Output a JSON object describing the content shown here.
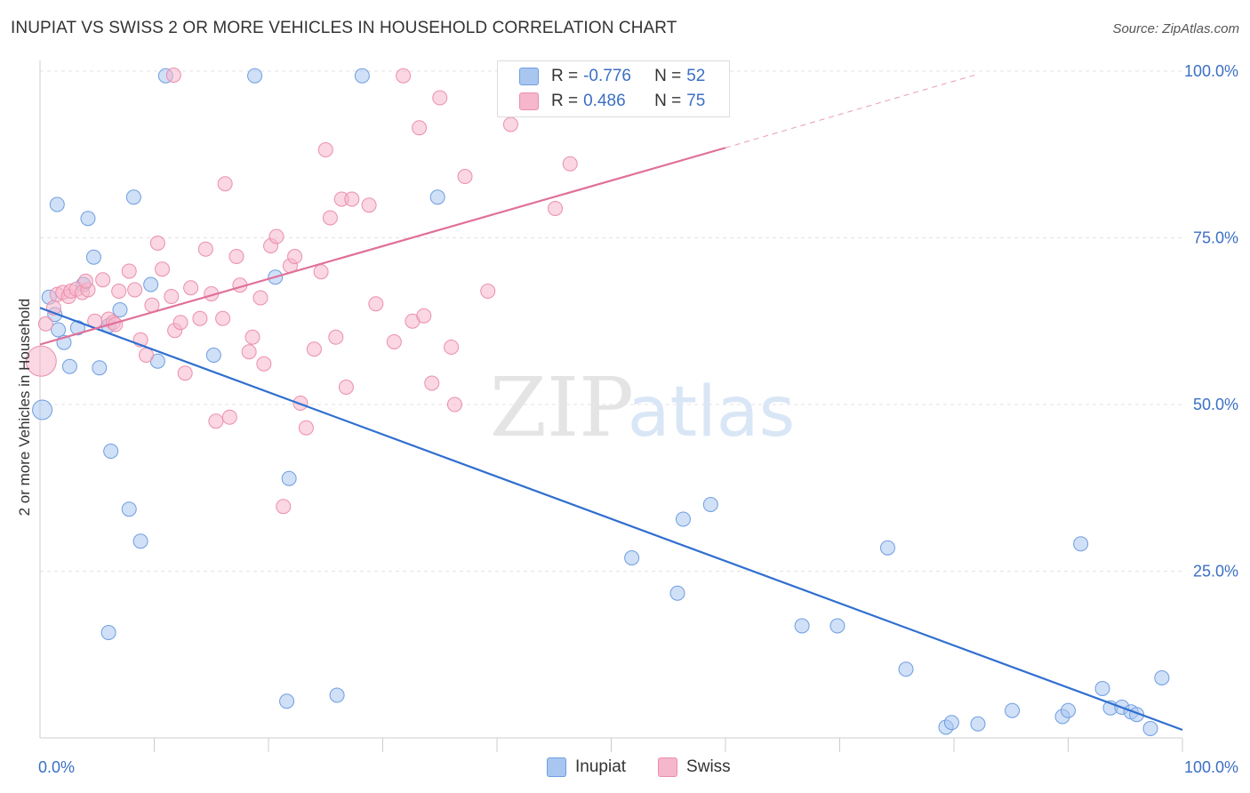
{
  "header": {
    "title": "INUPIAT VS SWISS 2 OR MORE VEHICLES IN HOUSEHOLD CORRELATION CHART",
    "source": "Source: ZipAtlas.com"
  },
  "watermark": {
    "zip": "ZIP",
    "atlas": "atlas"
  },
  "legend_top": {
    "rows": [
      {
        "r_label": "R =",
        "r_value": "-0.776",
        "n_label": "N =",
        "n_value": "52",
        "color": "#a9c6f0"
      },
      {
        "r_label": "R =",
        "r_value": "0.486",
        "n_label": "N =",
        "n_value": "75",
        "color": "#f6b6cb"
      }
    ]
  },
  "legend_bottom": {
    "items": [
      {
        "label": "Inupiat",
        "color": "#a9c6f0"
      },
      {
        "label": "Swiss",
        "color": "#f6b6cb"
      }
    ]
  },
  "chart_data": {
    "type": "scatter",
    "title": "INUPIAT VS SWISS 2 OR MORE VEHICLES IN HOUSEHOLD CORRELATION CHART",
    "xlabel": "",
    "ylabel": "2 or more Vehicles in Household",
    "xlim": [
      0,
      100
    ],
    "ylim": [
      0,
      100
    ],
    "x_tick_labels": [
      "0.0%",
      "100.0%"
    ],
    "y_tick_labels": [
      "25.0%",
      "50.0%",
      "75.0%",
      "100.0%"
    ],
    "y_ticks": [
      25,
      50,
      75,
      100
    ],
    "x_minor_ticks": [
      10,
      20,
      30,
      40,
      50,
      60,
      70,
      80,
      90,
      100
    ],
    "grid": true,
    "legend_position": "top-center",
    "colors": {
      "inupiat_fill": "#a9c6f0",
      "inupiat_stroke": "#6f9ee0",
      "inupiat_line": "#2f6fcf",
      "swiss_fill": "#f6b6cb",
      "swiss_stroke": "#eb8fae",
      "swiss_line": "#e0709a"
    },
    "series": [
      {
        "name": "Inupiat",
        "points": [
          [
            0.2,
            49.2
          ],
          [
            0.8,
            66.1
          ],
          [
            1.3,
            63.5
          ],
          [
            1.6,
            61.2
          ],
          [
            2.1,
            59.3
          ],
          [
            2.6,
            55.7
          ],
          [
            3.3,
            61.5
          ],
          [
            3.8,
            68.0
          ],
          [
            4.2,
            77.9
          ],
          [
            4.7,
            72.1
          ],
          [
            5.2,
            55.5
          ],
          [
            6.0,
            61.8
          ],
          [
            6.2,
            43.0
          ],
          [
            7.0,
            64.2
          ],
          [
            7.8,
            34.3
          ],
          [
            8.2,
            81.1
          ],
          [
            8.8,
            29.5
          ],
          [
            9.7,
            68.0
          ],
          [
            10.3,
            56.5
          ],
          [
            11.0,
            99.3
          ],
          [
            6.0,
            15.8
          ],
          [
            15.2,
            57.4
          ],
          [
            18.8,
            99.3
          ],
          [
            20.6,
            69.1
          ],
          [
            21.6,
            5.5
          ],
          [
            21.8,
            38.9
          ],
          [
            26.0,
            6.4
          ],
          [
            28.2,
            99.3
          ],
          [
            34.8,
            81.1
          ],
          [
            51.8,
            27.0
          ],
          [
            55.8,
            21.7
          ],
          [
            56.3,
            32.8
          ],
          [
            58.7,
            35.0
          ],
          [
            66.7,
            16.8
          ],
          [
            69.8,
            16.8
          ],
          [
            74.2,
            28.5
          ],
          [
            75.8,
            10.3
          ],
          [
            79.3,
            1.6
          ],
          [
            79.8,
            2.3
          ],
          [
            82.1,
            2.1
          ],
          [
            85.1,
            4.1
          ],
          [
            89.5,
            3.2
          ],
          [
            90.0,
            4.1
          ],
          [
            91.1,
            29.1
          ],
          [
            93.0,
            7.4
          ],
          [
            93.7,
            4.5
          ],
          [
            94.7,
            4.6
          ],
          [
            95.5,
            3.9
          ],
          [
            96.0,
            3.5
          ],
          [
            97.2,
            1.4
          ],
          [
            98.2,
            9.0
          ],
          [
            1.5,
            80.0
          ]
        ],
        "trend": {
          "x1": 0,
          "y1": 64.5,
          "x2": 100,
          "y2": 1.2,
          "dashed_to": null
        }
      },
      {
        "name": "Swiss",
        "points": [
          [
            0.1,
            56.5
          ],
          [
            0.5,
            62.1
          ],
          [
            1.2,
            64.5
          ],
          [
            1.5,
            66.5
          ],
          [
            2.0,
            66.8
          ],
          [
            2.5,
            66.2
          ],
          [
            2.7,
            67.0
          ],
          [
            3.2,
            67.3
          ],
          [
            3.7,
            66.8
          ],
          [
            4.2,
            67.2
          ],
          [
            4.8,
            62.5
          ],
          [
            5.5,
            68.7
          ],
          [
            6.0,
            62.8
          ],
          [
            6.4,
            62.3
          ],
          [
            6.6,
            62.0
          ],
          [
            6.9,
            67.0
          ],
          [
            7.8,
            70.0
          ],
          [
            8.3,
            67.2
          ],
          [
            8.8,
            59.7
          ],
          [
            9.3,
            57.4
          ],
          [
            9.8,
            64.9
          ],
          [
            10.3,
            74.2
          ],
          [
            10.7,
            70.3
          ],
          [
            11.5,
            66.2
          ],
          [
            11.8,
            61.1
          ],
          [
            12.3,
            62.3
          ],
          [
            12.7,
            54.7
          ],
          [
            13.2,
            67.5
          ],
          [
            14.0,
            62.9
          ],
          [
            14.5,
            73.3
          ],
          [
            15.0,
            66.6
          ],
          [
            15.4,
            47.5
          ],
          [
            16.0,
            62.9
          ],
          [
            16.2,
            83.1
          ],
          [
            16.6,
            48.1
          ],
          [
            17.2,
            72.2
          ],
          [
            17.5,
            67.9
          ],
          [
            18.3,
            57.9
          ],
          [
            18.6,
            60.1
          ],
          [
            19.3,
            66.0
          ],
          [
            19.6,
            56.1
          ],
          [
            20.2,
            73.8
          ],
          [
            20.7,
            75.2
          ],
          [
            21.3,
            34.7
          ],
          [
            21.9,
            70.8
          ],
          [
            22.3,
            72.2
          ],
          [
            22.8,
            50.2
          ],
          [
            23.3,
            46.5
          ],
          [
            24.0,
            58.3
          ],
          [
            24.6,
            69.9
          ],
          [
            25.0,
            88.2
          ],
          [
            25.4,
            78.0
          ],
          [
            25.9,
            60.1
          ],
          [
            26.4,
            80.8
          ],
          [
            26.8,
            52.6
          ],
          [
            27.3,
            80.8
          ],
          [
            28.8,
            79.9
          ],
          [
            29.4,
            65.1
          ],
          [
            31.0,
            59.4
          ],
          [
            31.8,
            99.3
          ],
          [
            32.6,
            62.5
          ],
          [
            33.2,
            91.5
          ],
          [
            33.6,
            63.3
          ],
          [
            34.3,
            53.2
          ],
          [
            35.0,
            96.0
          ],
          [
            36.0,
            58.6
          ],
          [
            36.3,
            50.0
          ],
          [
            37.2,
            84.2
          ],
          [
            39.2,
            67.0
          ],
          [
            41.2,
            92.0
          ],
          [
            45.1,
            79.4
          ],
          [
            46.4,
            86.1
          ],
          [
            52.6,
            99.3
          ],
          [
            4.0,
            68.5
          ],
          [
            11.7,
            99.4
          ]
        ],
        "trend": {
          "x1": 0,
          "y1": 59.0,
          "x2": 60,
          "y2": 88.5,
          "dashed_to": {
            "x": 82,
            "y": 99.5
          }
        }
      }
    ]
  }
}
